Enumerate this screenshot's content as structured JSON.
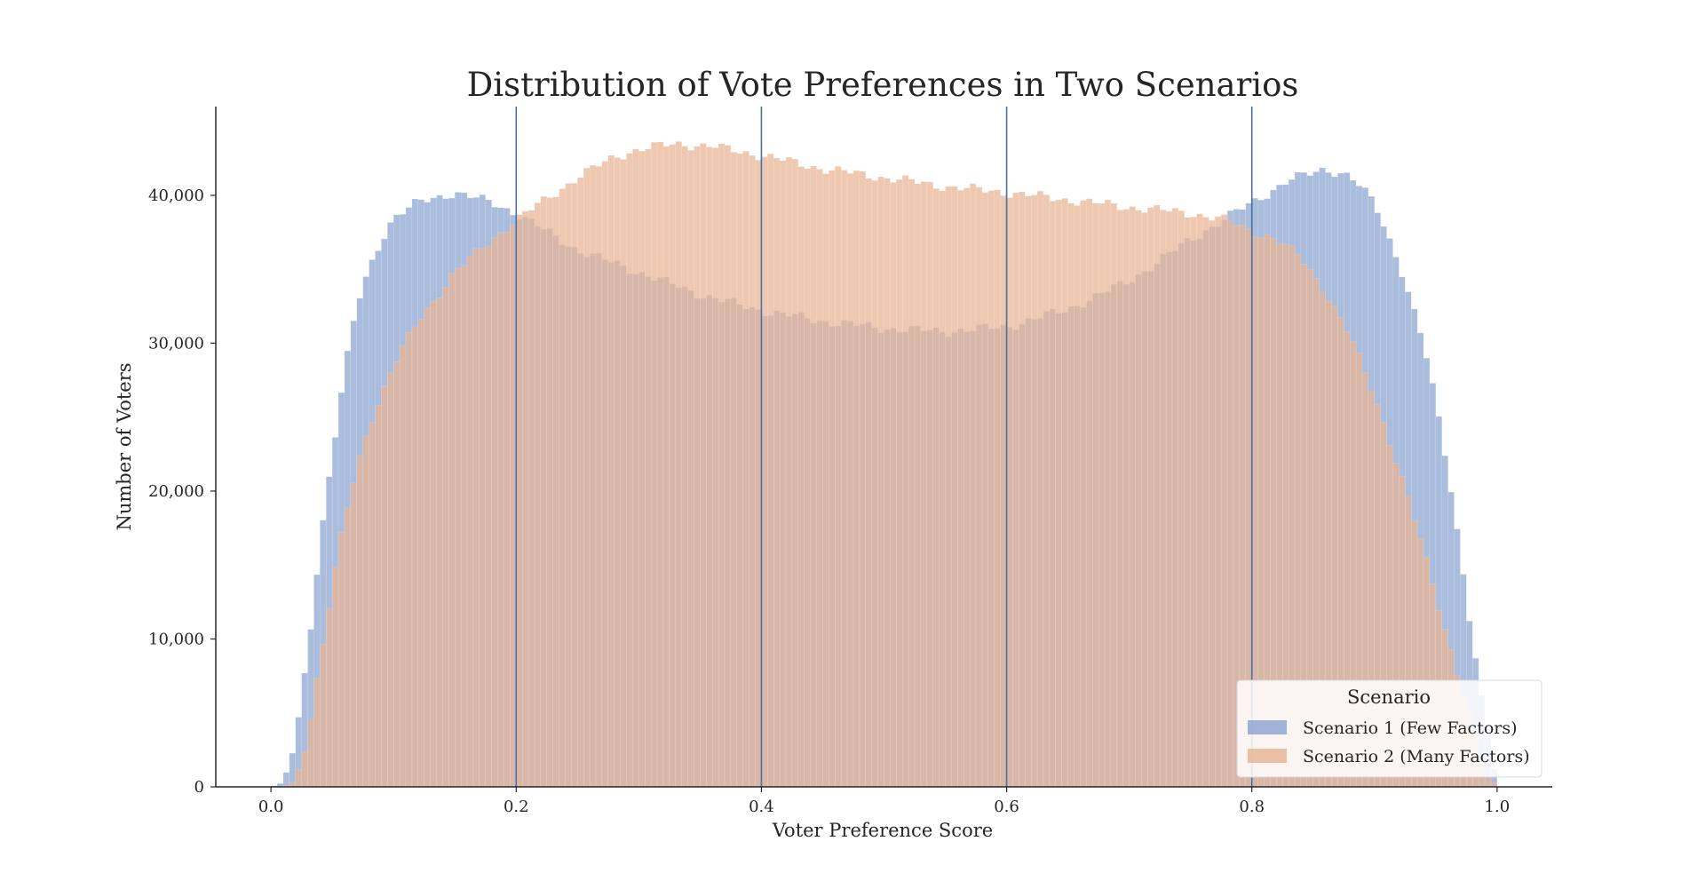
{
  "chart_data": {
    "type": "histogram",
    "title": "Distribution of Vote Preferences in Two Scenarios",
    "xlabel": "Voter Preference Score",
    "ylabel": "Number of Voters",
    "xlim": [
      -0.045,
      1.045
    ],
    "ylim": [
      0,
      46000
    ],
    "x_ticks": [
      0.0,
      0.2,
      0.4,
      0.6,
      0.8,
      1.0
    ],
    "x_tick_labels": [
      "0.0",
      "0.2",
      "0.4",
      "0.6",
      "0.8",
      "1.0"
    ],
    "y_ticks": [
      0,
      10000,
      20000,
      30000,
      40000
    ],
    "y_tick_labels": [
      "0",
      "10,000",
      "20,000",
      "30,000",
      "40,000"
    ],
    "bin_range": [
      0.0,
      1.0
    ],
    "bin_count": 200,
    "vertical_lines": [
      0.2,
      0.4,
      0.6,
      0.8
    ],
    "vertical_line_color": "#4c6fa5",
    "grid": false,
    "legend": {
      "title": "Scenario",
      "placement": "lower-right"
    },
    "series": [
      {
        "name": "Scenario 1 (Few Factors)",
        "color": "#8fa7d1",
        "profile": [
          [
            0.0,
            0
          ],
          [
            0.01,
            300
          ],
          [
            0.02,
            3000
          ],
          [
            0.03,
            9000
          ],
          [
            0.04,
            16500
          ],
          [
            0.05,
            22500
          ],
          [
            0.06,
            28000
          ],
          [
            0.07,
            32500
          ],
          [
            0.08,
            35000
          ],
          [
            0.09,
            37000
          ],
          [
            0.1,
            38500
          ],
          [
            0.12,
            39500
          ],
          [
            0.15,
            40200
          ],
          [
            0.18,
            39500
          ],
          [
            0.2,
            38800
          ],
          [
            0.22,
            37800
          ],
          [
            0.25,
            36300
          ],
          [
            0.3,
            34800
          ],
          [
            0.35,
            33300
          ],
          [
            0.4,
            32200
          ],
          [
            0.45,
            31500
          ],
          [
            0.5,
            31000
          ],
          [
            0.55,
            30800
          ],
          [
            0.6,
            31100
          ],
          [
            0.65,
            32300
          ],
          [
            0.7,
            34200
          ],
          [
            0.75,
            37000
          ],
          [
            0.78,
            38500
          ],
          [
            0.8,
            39500
          ],
          [
            0.83,
            41000
          ],
          [
            0.86,
            41800
          ],
          [
            0.88,
            41300
          ],
          [
            0.9,
            39500
          ],
          [
            0.92,
            35500
          ],
          [
            0.94,
            30000
          ],
          [
            0.95,
            26000
          ],
          [
            0.96,
            21500
          ],
          [
            0.97,
            16000
          ],
          [
            0.98,
            10000
          ],
          [
            0.99,
            4500
          ],
          [
            1.0,
            200
          ]
        ]
      },
      {
        "name": "Scenario 2 (Many Factors)",
        "color": "#e8b596",
        "profile": [
          [
            0.0,
            0
          ],
          [
            0.01,
            0
          ],
          [
            0.02,
            400
          ],
          [
            0.03,
            3500
          ],
          [
            0.04,
            8500
          ],
          [
            0.05,
            13500
          ],
          [
            0.06,
            18000
          ],
          [
            0.07,
            21500
          ],
          [
            0.08,
            24500
          ],
          [
            0.1,
            28500
          ],
          [
            0.12,
            31500
          ],
          [
            0.15,
            34800
          ],
          [
            0.18,
            37000
          ],
          [
            0.2,
            38300
          ],
          [
            0.22,
            39500
          ],
          [
            0.25,
            41200
          ],
          [
            0.28,
            42600
          ],
          [
            0.3,
            43100
          ],
          [
            0.33,
            43500
          ],
          [
            0.36,
            43300
          ],
          [
            0.4,
            42700
          ],
          [
            0.45,
            41800
          ],
          [
            0.5,
            41200
          ],
          [
            0.55,
            40600
          ],
          [
            0.6,
            40200
          ],
          [
            0.65,
            39700
          ],
          [
            0.7,
            39200
          ],
          [
            0.75,
            38800
          ],
          [
            0.78,
            38300
          ],
          [
            0.8,
            37600
          ],
          [
            0.82,
            37000
          ],
          [
            0.84,
            35800
          ],
          [
            0.86,
            33500
          ],
          [
            0.88,
            30500
          ],
          [
            0.9,
            26500
          ],
          [
            0.92,
            21500
          ],
          [
            0.94,
            16000
          ],
          [
            0.96,
            10000
          ],
          [
            0.97,
            7000
          ],
          [
            0.98,
            4000
          ],
          [
            0.99,
            1000
          ],
          [
            1.0,
            0
          ]
        ]
      }
    ]
  }
}
